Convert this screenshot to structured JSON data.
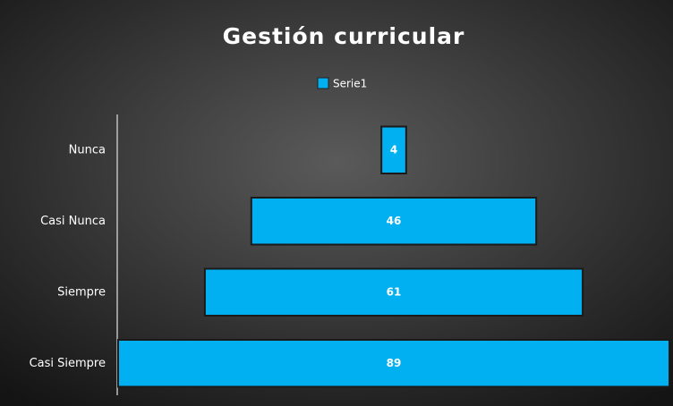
{
  "chart_data": {
    "type": "funnel",
    "title": "Gestión curricular",
    "categories": [
      "Nunca",
      "Casi Nunca",
      "Siempre",
      "Casi Siempre"
    ],
    "series": [
      {
        "name": "Serie1",
        "color": "#00b0f0",
        "values": [
          4,
          46,
          61,
          89
        ]
      }
    ],
    "legend": "top"
  }
}
